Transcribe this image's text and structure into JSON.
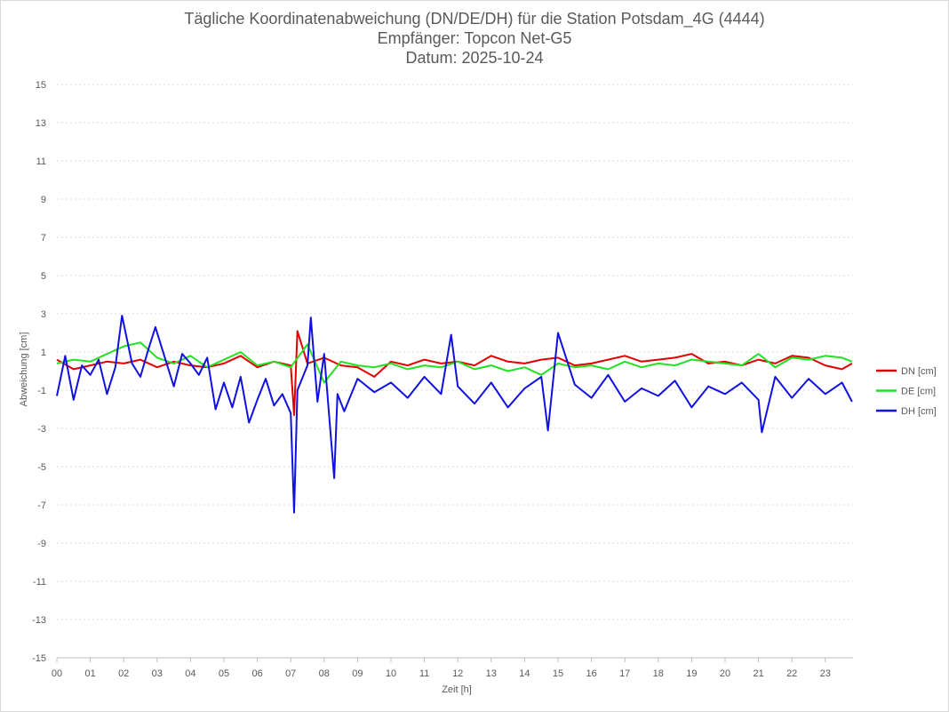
{
  "chart_data": {
    "type": "line",
    "title": "Tägliche Koordinatenabweichung (DN/DE/DH) für die Station Potsdam_4G (4444)",
    "subtitle_1": "Empfänger: Topcon Net-G5",
    "subtitle_2": "Datum: 2025-10-24",
    "xlabel": "Zeit [h]",
    "ylabel": "Abweichung [cm]",
    "ylim": [
      -15,
      15
    ],
    "xlim": [
      0,
      24
    ],
    "y_ticks": [
      "15",
      "13",
      "11",
      "9",
      "7",
      "5",
      "3",
      "1",
      "-1",
      "-3",
      "-5",
      "-7",
      "-9",
      "-11",
      "-13",
      "-15"
    ],
    "x_ticks": [
      "00",
      "01",
      "02",
      "03",
      "04",
      "05",
      "06",
      "07",
      "08",
      "09",
      "10",
      "11",
      "12",
      "13",
      "14",
      "15",
      "16",
      "17",
      "18",
      "19",
      "20",
      "21",
      "22",
      "23"
    ],
    "grid": true,
    "legend_position": "right",
    "series": [
      {
        "name": "DN [cm]",
        "color": "#e00000",
        "x": [
          0,
          0.5,
          1,
          1.5,
          2,
          2.5,
          3,
          3.5,
          4,
          4.5,
          5,
          5.5,
          6,
          6.5,
          7,
          7.1,
          7.2,
          7.5,
          8,
          8.5,
          9,
          9.5,
          10,
          10.5,
          11,
          11.5,
          12,
          12.5,
          13,
          13.5,
          14,
          14.5,
          15,
          15.5,
          16,
          16.5,
          17,
          17.5,
          18,
          18.5,
          19,
          19.5,
          20,
          20.5,
          21,
          21.5,
          22,
          22.5,
          23,
          23.5,
          23.8
        ],
        "values": [
          0.6,
          0.1,
          0.3,
          0.5,
          0.4,
          0.6,
          0.2,
          0.5,
          0.3,
          0.2,
          0.4,
          0.8,
          0.2,
          0.5,
          0.3,
          -2.3,
          2.1,
          0.4,
          0.7,
          0.3,
          0.2,
          -0.3,
          0.5,
          0.3,
          0.6,
          0.4,
          0.5,
          0.3,
          0.8,
          0.5,
          0.4,
          0.6,
          0.7,
          0.3,
          0.4,
          0.6,
          0.8,
          0.5,
          0.6,
          0.7,
          0.9,
          0.4,
          0.5,
          0.3,
          0.6,
          0.4,
          0.8,
          0.7,
          0.3,
          0.1,
          0.4
        ]
      },
      {
        "name": "DE [cm]",
        "color": "#22e022",
        "x": [
          0,
          0.5,
          1,
          1.5,
          2,
          2.5,
          3,
          3.5,
          4,
          4.5,
          5,
          5.5,
          6,
          6.5,
          7,
          7.5,
          8,
          8.5,
          9,
          9.5,
          10,
          10.5,
          11,
          11.5,
          12,
          12.5,
          13,
          13.5,
          14,
          14.5,
          15,
          15.5,
          16,
          16.5,
          17,
          17.5,
          18,
          18.5,
          19,
          19.5,
          20,
          20.5,
          21,
          21.5,
          22,
          22.5,
          23,
          23.5,
          23.8
        ],
        "values": [
          0.4,
          0.6,
          0.5,
          0.9,
          1.3,
          1.5,
          0.7,
          0.4,
          0.8,
          0.2,
          0.6,
          1.0,
          0.3,
          0.5,
          0.2,
          1.4,
          -0.6,
          0.5,
          0.3,
          0.2,
          0.4,
          0.1,
          0.3,
          0.2,
          0.5,
          0.1,
          0.3,
          0.0,
          0.2,
          -0.2,
          0.4,
          0.2,
          0.3,
          0.1,
          0.5,
          0.2,
          0.4,
          0.3,
          0.6,
          0.5,
          0.4,
          0.3,
          0.9,
          0.2,
          0.7,
          0.6,
          0.8,
          0.7,
          0.5
        ]
      },
      {
        "name": "DH [cm]",
        "color": "#1010e0",
        "x": [
          0,
          0.25,
          0.5,
          0.75,
          1,
          1.25,
          1.5,
          1.75,
          1.95,
          2.25,
          2.5,
          2.75,
          2.95,
          3.25,
          3.5,
          3.75,
          4,
          4.25,
          4.5,
          4.75,
          5,
          5.25,
          5.5,
          5.75,
          6,
          6.25,
          6.5,
          6.75,
          7,
          7.1,
          7.2,
          7.5,
          7.6,
          7.8,
          8,
          8.3,
          8.4,
          8.6,
          9,
          9.5,
          10,
          10.5,
          11,
          11.5,
          11.8,
          12,
          12.5,
          13,
          13.5,
          14,
          14.5,
          14.7,
          15,
          15.5,
          16,
          16.5,
          17,
          17.5,
          18,
          18.5,
          19,
          19.5,
          20,
          20.5,
          21,
          21.1,
          21.5,
          22,
          22.5,
          23,
          23.5,
          23.8
        ],
        "values": [
          -1.3,
          0.8,
          -1.5,
          0.3,
          -0.2,
          0.6,
          -1.2,
          0.2,
          2.9,
          0.4,
          -0.3,
          1.2,
          2.3,
          0.6,
          -0.8,
          0.9,
          0.4,
          -0.2,
          0.7,
          -2.0,
          -0.6,
          -1.9,
          -0.3,
          -2.7,
          -1.5,
          -0.4,
          -1.8,
          -1.2,
          -2.2,
          -7.4,
          -1.0,
          0.3,
          2.8,
          -1.6,
          0.9,
          -5.6,
          -1.2,
          -2.1,
          -0.4,
          -1.1,
          -0.6,
          -1.4,
          -0.3,
          -1.2,
          1.9,
          -0.8,
          -1.7,
          -0.6,
          -1.9,
          -0.9,
          -0.3,
          -3.1,
          2.0,
          -0.7,
          -1.4,
          -0.2,
          -1.6,
          -0.9,
          -1.3,
          -0.5,
          -1.9,
          -0.8,
          -1.2,
          -0.6,
          -1.5,
          -3.2,
          -0.3,
          -1.4,
          -0.4,
          -1.2,
          -0.6,
          -1.6
        ]
      }
    ]
  }
}
